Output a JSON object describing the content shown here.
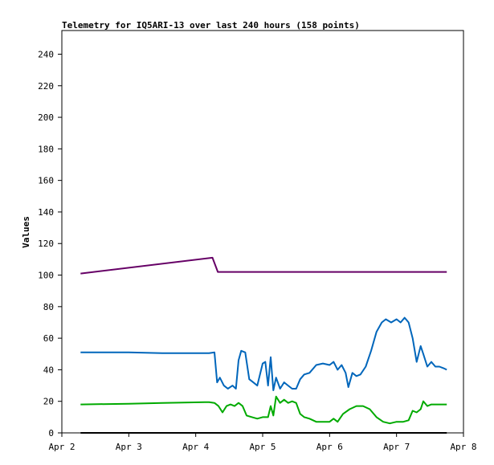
{
  "chart_data": {
    "type": "line",
    "title": "Telemetry for IQ5ARI-13 over last 240 hours (158 points)",
    "xlabel": "",
    "ylabel": "Values",
    "x_ticks": [
      "Apr 2",
      "Apr 3",
      "Apr 4",
      "Apr 5",
      "Apr 6",
      "Apr 7",
      "Apr 8"
    ],
    "x_range_days": [
      2,
      8
    ],
    "ylim": [
      0,
      255
    ],
    "y_ticks": [
      0,
      20,
      40,
      60,
      80,
      100,
      120,
      140,
      160,
      180,
      200,
      220,
      240
    ],
    "grid": false,
    "legend": "none",
    "series": [
      {
        "color": "#660066",
        "points": [
          [
            2.28,
            101
          ],
          [
            4.25,
            111
          ],
          [
            4.33,
            102
          ],
          [
            6.0,
            102
          ],
          [
            6.5,
            102
          ],
          [
            7.75,
            102
          ]
        ]
      },
      {
        "color": "#0066bb",
        "points": [
          [
            2.28,
            51
          ],
          [
            3.0,
            51
          ],
          [
            3.5,
            50.5
          ],
          [
            4.2,
            50.5
          ],
          [
            4.28,
            51
          ],
          [
            4.32,
            32
          ],
          [
            4.36,
            35
          ],
          [
            4.42,
            30
          ],
          [
            4.48,
            28
          ],
          [
            4.55,
            30
          ],
          [
            4.6,
            28
          ],
          [
            4.64,
            46
          ],
          [
            4.68,
            52
          ],
          [
            4.74,
            51
          ],
          [
            4.8,
            34
          ],
          [
            4.86,
            32
          ],
          [
            4.92,
            30
          ],
          [
            5.0,
            44
          ],
          [
            5.04,
            45
          ],
          [
            5.08,
            30
          ],
          [
            5.12,
            48
          ],
          [
            5.16,
            27
          ],
          [
            5.2,
            35
          ],
          [
            5.26,
            28
          ],
          [
            5.32,
            32
          ],
          [
            5.38,
            30
          ],
          [
            5.44,
            28
          ],
          [
            5.5,
            28
          ],
          [
            5.56,
            34
          ],
          [
            5.62,
            37
          ],
          [
            5.7,
            38
          ],
          [
            5.8,
            43
          ],
          [
            5.9,
            44
          ],
          [
            6.0,
            43
          ],
          [
            6.06,
            45
          ],
          [
            6.12,
            40
          ],
          [
            6.18,
            43
          ],
          [
            6.24,
            38
          ],
          [
            6.28,
            29
          ],
          [
            6.34,
            38
          ],
          [
            6.4,
            36
          ],
          [
            6.46,
            37
          ],
          [
            6.54,
            42
          ],
          [
            6.62,
            52
          ],
          [
            6.7,
            64
          ],
          [
            6.78,
            70
          ],
          [
            6.84,
            72
          ],
          [
            6.92,
            70
          ],
          [
            7.0,
            72
          ],
          [
            7.06,
            70
          ],
          [
            7.12,
            73
          ],
          [
            7.18,
            70
          ],
          [
            7.24,
            60
          ],
          [
            7.3,
            45
          ],
          [
            7.36,
            55
          ],
          [
            7.4,
            50
          ],
          [
            7.46,
            42
          ],
          [
            7.52,
            45
          ],
          [
            7.58,
            42
          ],
          [
            7.64,
            42
          ],
          [
            7.7,
            41
          ],
          [
            7.75,
            40
          ]
        ]
      },
      {
        "color": "#00aa00",
        "points": [
          [
            2.28,
            18
          ],
          [
            3.0,
            18.5
          ],
          [
            3.5,
            19
          ],
          [
            4.2,
            19.5
          ],
          [
            4.28,
            19
          ],
          [
            4.34,
            17
          ],
          [
            4.4,
            13
          ],
          [
            4.46,
            17
          ],
          [
            4.52,
            18
          ],
          [
            4.58,
            17
          ],
          [
            4.64,
            19
          ],
          [
            4.7,
            17
          ],
          [
            4.76,
            11
          ],
          [
            4.84,
            10
          ],
          [
            4.92,
            9
          ],
          [
            5.0,
            10
          ],
          [
            5.08,
            10
          ],
          [
            5.12,
            17
          ],
          [
            5.16,
            11
          ],
          [
            5.2,
            23
          ],
          [
            5.26,
            19
          ],
          [
            5.32,
            21
          ],
          [
            5.38,
            19
          ],
          [
            5.44,
            20
          ],
          [
            5.5,
            19
          ],
          [
            5.56,
            12
          ],
          [
            5.62,
            10
          ],
          [
            5.7,
            9
          ],
          [
            5.8,
            7
          ],
          [
            5.9,
            7
          ],
          [
            6.0,
            7
          ],
          [
            6.06,
            9
          ],
          [
            6.12,
            7
          ],
          [
            6.2,
            12
          ],
          [
            6.3,
            15
          ],
          [
            6.4,
            17
          ],
          [
            6.5,
            17
          ],
          [
            6.6,
            15
          ],
          [
            6.7,
            10
          ],
          [
            6.8,
            7
          ],
          [
            6.9,
            6
          ],
          [
            7.0,
            7
          ],
          [
            7.1,
            7
          ],
          [
            7.18,
            8
          ],
          [
            7.24,
            14
          ],
          [
            7.3,
            13
          ],
          [
            7.36,
            15
          ],
          [
            7.4,
            20
          ],
          [
            7.46,
            17
          ],
          [
            7.52,
            18
          ],
          [
            7.6,
            18
          ],
          [
            7.7,
            18
          ],
          [
            7.75,
            18
          ]
        ]
      },
      {
        "color": "#000000",
        "points": [
          [
            2.28,
            0
          ],
          [
            7.75,
            0
          ]
        ]
      }
    ]
  }
}
